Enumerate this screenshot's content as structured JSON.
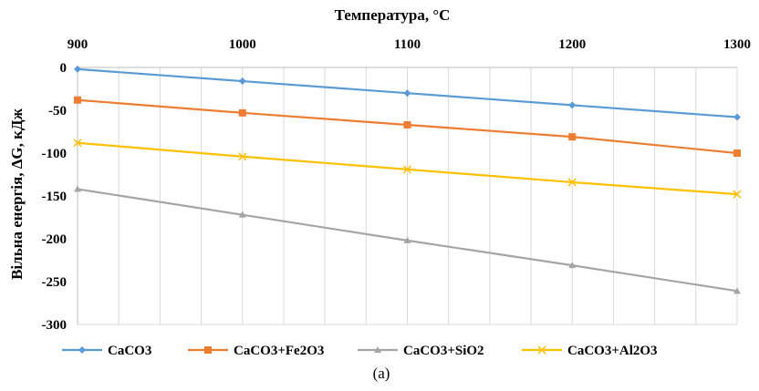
{
  "chart_data": {
    "type": "line",
    "title": "",
    "xlabel": "Температура, °C",
    "ylabel": "Вільна енергія, ΔG, кДж",
    "x_axis_position": "top",
    "x": [
      900,
      1000,
      1100,
      1200,
      1300
    ],
    "x_ticks": [
      "900",
      "1000",
      "1100",
      "1200",
      "1300"
    ],
    "xlim": [
      900,
      1300
    ],
    "ylim": [
      -300,
      0
    ],
    "y_ticks": [
      "0",
      "-50",
      "-100",
      "-150",
      "-200",
      "-250",
      "-300"
    ],
    "grid": "vertical",
    "legend_position": "bottom",
    "series": [
      {
        "name": "CaCO3",
        "values": [
          -2,
          -16,
          -30,
          -44,
          -58
        ],
        "color": "#5b9bd5",
        "marker": "diamond"
      },
      {
        "name": "CaCO3+Fe2O3",
        "values": [
          -38,
          -53,
          -67,
          -81,
          -100
        ],
        "color": "#ed7d31",
        "marker": "square"
      },
      {
        "name": "CaCO3+SiO2",
        "values": [
          -142,
          -172,
          -202,
          -231,
          -261
        ],
        "color": "#a5a5a5",
        "marker": "triangle"
      },
      {
        "name": "CaCO3+Al2O3",
        "values": [
          -88,
          -104,
          -119,
          -134,
          -148
        ],
        "color": "#ffc000",
        "marker": "x"
      }
    ],
    "caption": "(a)"
  }
}
